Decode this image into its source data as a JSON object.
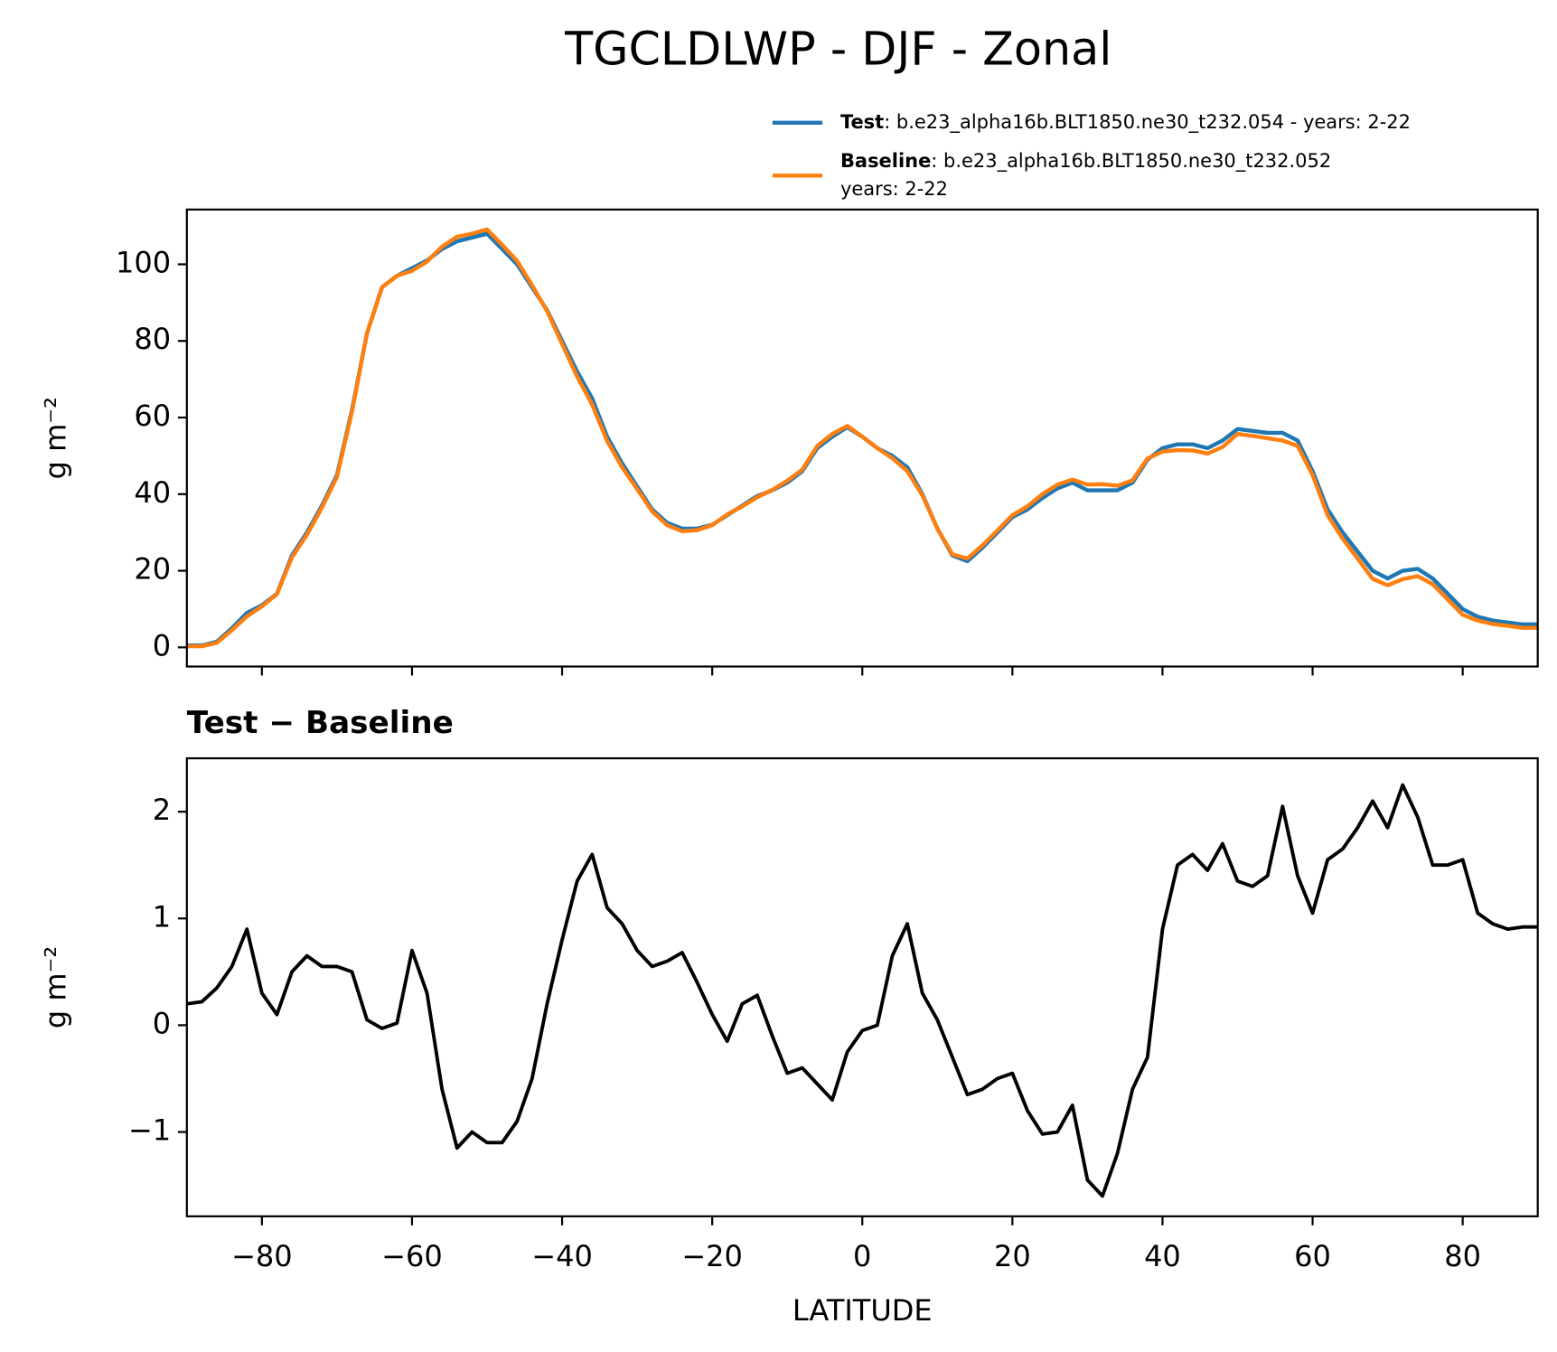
{
  "chart_data": [
    {
      "type": "line",
      "title": "TGCLDLWP - DJF - Zonal",
      "ylabel": "g m⁻²",
      "x": [
        -90,
        -88,
        -86,
        -84,
        -82,
        -80,
        -78,
        -76,
        -74,
        -72,
        -70,
        -68,
        -66,
        -64,
        -62,
        -60,
        -58,
        -56,
        -54,
        -52,
        -50,
        -48,
        -46,
        -44,
        -42,
        -40,
        -38,
        -36,
        -34,
        -32,
        -30,
        -28,
        -26,
        -24,
        -22,
        -20,
        -18,
        -16,
        -14,
        -12,
        -10,
        -8,
        -6,
        -4,
        -2,
        0,
        2,
        4,
        6,
        8,
        10,
        12,
        14,
        16,
        18,
        20,
        22,
        24,
        26,
        28,
        30,
        32,
        34,
        36,
        38,
        40,
        42,
        44,
        46,
        48,
        50,
        52,
        54,
        56,
        58,
        60,
        62,
        64,
        66,
        68,
        70,
        72,
        74,
        76,
        78,
        80,
        82,
        84,
        86,
        88,
        90
      ],
      "series": [
        {
          "name": "Test",
          "label_lines": [
            ": b.e23_alpha16b.BLT1850.ne30_t232.054 - years: 2-22"
          ],
          "color": "#1f77b4",
          "values": [
            0.5,
            0.5,
            1.5,
            5,
            9,
            11,
            14,
            24,
            30,
            37,
            45,
            62,
            82,
            94,
            97,
            99,
            101,
            104,
            106,
            107,
            108,
            104,
            100,
            94,
            88,
            80,
            72,
            65,
            55,
            48,
            42,
            36,
            32.5,
            31,
            31,
            32,
            34.5,
            37,
            39.5,
            41,
            43,
            46,
            52,
            55,
            57.5,
            55,
            52,
            50,
            47,
            40,
            31,
            24,
            22.5,
            26,
            30,
            34,
            36,
            39,
            41.5,
            43,
            41,
            41,
            41,
            43,
            49,
            52,
            53,
            53,
            52,
            54,
            57,
            56.5,
            56,
            56,
            54,
            46,
            36,
            30,
            25,
            20,
            18,
            20,
            20.5,
            18,
            14,
            10,
            8,
            7,
            6.5,
            6,
            6
          ]
        },
        {
          "name": "Baseline",
          "label_lines": [
            ": b.e23_alpha16b.BLT1850.ne30_t232.052",
            "years: 2-22"
          ],
          "color": "#ff7f0e",
          "values": [
            0.3,
            0.3,
            1.2,
            4.5,
            8.1,
            10.7,
            13.9,
            23.5,
            29.4,
            36.5,
            44.5,
            61.5,
            82,
            94,
            97,
            98.3,
            100.7,
            104.6,
            107.2,
            108,
            109.1,
            105.1,
            100.9,
            94.5,
            87.8,
            79.2,
            70.7,
            63.4,
            53.9,
            47,
            41.3,
            35.5,
            31.9,
            30.3,
            30.6,
            31.9,
            34.7,
            36.8,
            39.2,
            41.1,
            43.5,
            46.4,
            52.6,
            55.7,
            57.8,
            55,
            52,
            49.4,
            46,
            39.7,
            31,
            24.3,
            23.2,
            26.6,
            30.5,
            34.5,
            36.8,
            40,
            42.5,
            43.8,
            42.5,
            42.6,
            42.2,
            43.6,
            49.3,
            51.1,
            51.5,
            51.4,
            50.6,
            52.3,
            55.7,
            55.2,
            54.6,
            54,
            52.6,
            45,
            34.5,
            28.4,
            23.2,
            17.9,
            16.2,
            17.8,
            18.6,
            16.5,
            12.5,
            8.5,
            7,
            6.1,
            5.6,
            5.1,
            5.1
          ]
        }
      ],
      "xlim": [
        -90,
        90
      ],
      "xticks": [
        -80,
        -60,
        -40,
        -20,
        0,
        20,
        40,
        60,
        80
      ],
      "ylim": [
        -5,
        114.3
      ],
      "yticks": [
        0,
        20,
        40,
        60,
        80,
        100
      ]
    },
    {
      "type": "line",
      "title": "Test − Baseline",
      "ylabel": "g m⁻²",
      "xlabel": "LATITUDE",
      "color": "#000000",
      "x": [
        -90,
        -88,
        -86,
        -84,
        -82,
        -80,
        -78,
        -76,
        -74,
        -72,
        -70,
        -68,
        -66,
        -64,
        -62,
        -60,
        -58,
        -56,
        -54,
        -52,
        -50,
        -48,
        -46,
        -44,
        -42,
        -40,
        -38,
        -36,
        -34,
        -32,
        -30,
        -28,
        -26,
        -24,
        -22,
        -20,
        -18,
        -16,
        -14,
        -12,
        -10,
        -8,
        -6,
        -4,
        -2,
        0,
        2,
        4,
        6,
        8,
        10,
        12,
        14,
        16,
        18,
        20,
        22,
        24,
        26,
        28,
        30,
        32,
        34,
        36,
        38,
        40,
        42,
        44,
        46,
        48,
        50,
        52,
        54,
        56,
        58,
        60,
        62,
        64,
        66,
        68,
        70,
        72,
        74,
        76,
        78,
        80,
        82,
        84,
        86,
        88,
        90
      ],
      "values": [
        0.2,
        0.22,
        0.35,
        0.55,
        0.9,
        0.3,
        0.1,
        0.5,
        0.65,
        0.55,
        0.55,
        0.5,
        0.05,
        -0.03,
        0.02,
        0.7,
        0.3,
        -0.6,
        -1.15,
        -1.0,
        -1.1,
        -1.1,
        -0.9,
        -0.5,
        0.2,
        0.8,
        1.35,
        1.6,
        1.1,
        0.95,
        0.7,
        0.55,
        0.6,
        0.68,
        0.4,
        0.1,
        -0.15,
        0.2,
        0.28,
        -0.1,
        -0.45,
        -0.4,
        -0.55,
        -0.7,
        -0.25,
        -0.05,
        0,
        0.65,
        0.95,
        0.3,
        0.05,
        -0.3,
        -0.65,
        -0.6,
        -0.5,
        -0.45,
        -0.8,
        -1.02,
        -1.0,
        -0.75,
        -1.45,
        -1.6,
        -1.2,
        -0.6,
        -0.3,
        0.9,
        1.5,
        1.6,
        1.45,
        1.7,
        1.35,
        1.3,
        1.4,
        2.05,
        1.4,
        1.05,
        1.55,
        1.65,
        1.85,
        2.1,
        1.85,
        2.25,
        1.95,
        1.5,
        1.5,
        1.55,
        1.05,
        0.95,
        0.9,
        0.92,
        0.92
      ],
      "xlim": [
        -90,
        90
      ],
      "xticks": [
        {
          "value": -80,
          "label": "−80"
        },
        {
          "value": -60,
          "label": "−60"
        },
        {
          "value": -40,
          "label": "−40"
        },
        {
          "value": -20,
          "label": "−20"
        },
        0,
        20,
        40,
        60,
        80
      ],
      "ylim": [
        -1.79,
        2.5
      ],
      "yticks": [
        {
          "value": -1,
          "label": "−1"
        },
        0,
        1,
        2
      ]
    }
  ]
}
